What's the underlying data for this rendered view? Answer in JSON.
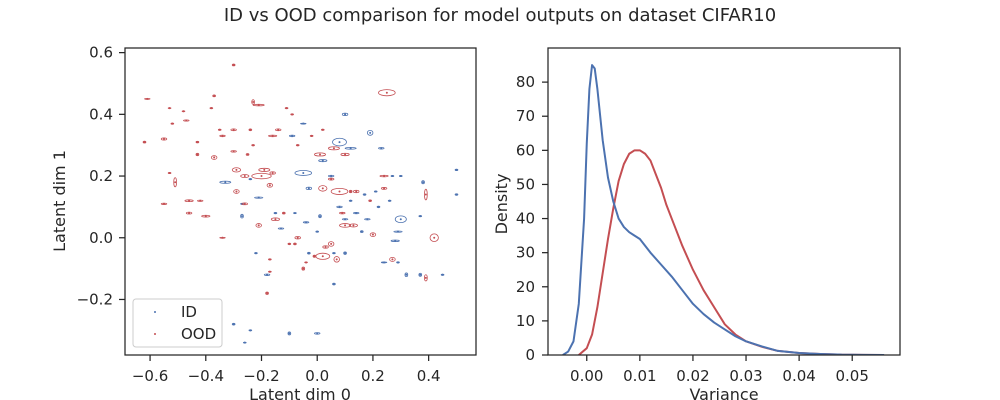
{
  "figure": {
    "title": "ID vs OOD comparison for model outputs on dataset CIFAR10"
  },
  "chart_data": [
    {
      "type": "scatter",
      "xlabel": "Latent dim 0",
      "ylabel": "Latent dim 1",
      "xlim": [
        -0.69,
        0.57
      ],
      "ylim": [
        -0.38,
        0.615
      ],
      "xticks": [
        -0.6,
        -0.4,
        -0.2,
        0.0,
        0.2,
        0.4
      ],
      "xtick_labels": [
        "−0.6",
        "−0.4",
        "−0.2",
        "0.0",
        "0.2",
        "0.4"
      ],
      "yticks": [
        -0.2,
        0.0,
        0.2,
        0.4,
        0.6
      ],
      "ytick_labels": [
        "−0.2",
        "0.0",
        "0.2",
        "0.4",
        "0.6"
      ],
      "legend": {
        "position": "lower-left",
        "entries": [
          "ID",
          "OOD"
        ]
      },
      "grid": false,
      "series": [
        {
          "name": "ID",
          "color": "#4c72b0",
          "points": [
            [
              0.1,
              0.4,
              0.02,
              0.008
            ],
            [
              0.08,
              0.31,
              0.05,
              0.025
            ],
            [
              0.19,
              0.34,
              0.02,
              0.016
            ],
            [
              0.23,
              0.29,
              0.02,
              0.005
            ],
            [
              0.12,
              0.29,
              0.04,
              0.006
            ],
            [
              0.02,
              0.25,
              0.03,
              0.007
            ],
            [
              -0.05,
              0.37,
              0.02,
              0.003
            ],
            [
              -0.09,
              0.33,
              0.02,
              0.005
            ],
            [
              -0.05,
              0.21,
              0.06,
              0.016
            ],
            [
              -0.03,
              0.16,
              0.02,
              0.008
            ],
            [
              -0.24,
              0.19,
              0.01,
              0.004
            ],
            [
              -0.33,
              0.18,
              0.04,
              0.007
            ],
            [
              -0.27,
              0.07,
              0.01,
              0.012
            ],
            [
              -0.21,
              0.13,
              0.03,
              0.004
            ],
            [
              -0.15,
              0.08,
              0.01,
              0.004
            ],
            [
              -0.13,
              0.03,
              0.02,
              0.004
            ],
            [
              -0.04,
              0.05,
              0.02,
              0.004
            ],
            [
              0.01,
              0.07,
              0.01,
              0.01
            ],
            [
              0.08,
              0.1,
              0.02,
              0.005
            ],
            [
              0.1,
              0.06,
              0.02,
              0.004
            ],
            [
              0.14,
              0.08,
              0.02,
              0.004
            ],
            [
              0.17,
              0.14,
              0.01,
              0.005
            ],
            [
              0.21,
              0.15,
              0.01,
              0.004
            ],
            [
              0.27,
              0.2,
              0.01,
              0.004
            ],
            [
              0.3,
              0.2,
              0.01,
              0.004
            ],
            [
              0.3,
              0.06,
              0.04,
              0.022
            ],
            [
              0.29,
              0.02,
              0.03,
              0.004
            ],
            [
              0.37,
              0.07,
              0.01,
              0.004
            ],
            [
              0.28,
              -0.01,
              0.03,
              0.005
            ],
            [
              0.24,
              -0.08,
              0.02,
              0.003
            ],
            [
              0.29,
              -0.08,
              0.01,
              0.004
            ],
            [
              0.32,
              -0.12,
              0.01,
              0.012
            ],
            [
              0.37,
              -0.12,
              0.01,
              0.01
            ],
            [
              0.45,
              -0.12,
              0.01,
              0.004
            ],
            [
              0.5,
              0.14,
              0.01,
              0.005
            ],
            [
              0.5,
              0.22,
              0.01,
              0.005
            ],
            [
              0.38,
              0.18,
              0.01,
              0.01
            ],
            [
              0.1,
              -0.05,
              0.01,
              0.008
            ],
            [
              0.06,
              -0.15,
              0.01,
              0.006
            ],
            [
              0.06,
              -0.05,
              0.01,
              0.004
            ],
            [
              -0.03,
              -0.05,
              0.01,
              0.006
            ],
            [
              -0.18,
              -0.12,
              0.02,
              0.005
            ],
            [
              -0.3,
              -0.28,
              0.01,
              0.006
            ],
            [
              -0.26,
              -0.34,
              0.01,
              0.003
            ],
            [
              -0.1,
              -0.31,
              0.01,
              0.01
            ],
            [
              0.0,
              -0.31,
              0.02,
              0.005
            ],
            [
              0.16,
              0.02,
              0.01,
              0.006
            ],
            [
              -0.22,
              -0.05,
              0.01,
              0.004
            ],
            [
              -0.27,
              0.11,
              0.01,
              0.003
            ],
            [
              0.22,
              0.1,
              0.01,
              0.005
            ],
            [
              0.05,
              0.2,
              0.02,
              0.005
            ],
            [
              -0.08,
              0.08,
              0.01,
              0.003
            ],
            [
              0.0,
              0.02,
              0.01,
              0.004
            ],
            [
              0.12,
              0.12,
              0.01,
              0.004
            ],
            [
              0.18,
              0.06,
              0.02,
              0.004
            ],
            [
              0.26,
              0.12,
              0.01,
              0.004
            ],
            [
              -0.24,
              -0.3,
              0.01,
              0.003
            ]
          ]
        },
        {
          "name": "OOD",
          "color": "#c44e52",
          "points": [
            [
              0.25,
              0.47,
              0.06,
              0.02
            ],
            [
              -0.21,
              0.43,
              0.04,
              0.005
            ],
            [
              -0.23,
              0.44,
              0.01,
              0.015
            ],
            [
              -0.3,
              0.56,
              0.01,
              0.006
            ],
            [
              -0.61,
              0.45,
              0.02,
              0.003
            ],
            [
              -0.37,
              0.46,
              0.01,
              0.006
            ],
            [
              -0.53,
              0.42,
              0.01,
              0.003
            ],
            [
              -0.48,
              0.41,
              0.01,
              0.003
            ],
            [
              -0.47,
              0.38,
              0.02,
              0.004
            ],
            [
              -0.52,
              0.37,
              0.01,
              0.004
            ],
            [
              -0.3,
              0.35,
              0.02,
              0.006
            ],
            [
              -0.24,
              0.35,
              0.01,
              0.006
            ],
            [
              -0.16,
              0.33,
              0.03,
              0.005
            ],
            [
              -0.14,
              0.35,
              0.02,
              0.006
            ],
            [
              -0.09,
              0.4,
              0.01,
              0.004
            ],
            [
              -0.02,
              0.33,
              0.01,
              0.004
            ],
            [
              0.02,
              0.35,
              0.01,
              0.004
            ],
            [
              -0.35,
              0.35,
              0.01,
              0.004
            ],
            [
              -0.62,
              0.31,
              0.01,
              0.006
            ],
            [
              -0.55,
              0.32,
              0.02,
              0.007
            ],
            [
              -0.43,
              0.31,
              0.01,
              0.005
            ],
            [
              -0.37,
              0.26,
              0.02,
              0.012
            ],
            [
              -0.43,
              0.27,
              0.01,
              0.008
            ],
            [
              -0.3,
              0.28,
              0.02,
              0.005
            ],
            [
              -0.25,
              0.27,
              0.01,
              0.006
            ],
            [
              -0.23,
              0.3,
              0.01,
              0.004
            ],
            [
              0.01,
              0.27,
              0.04,
              0.01
            ],
            [
              0.1,
              0.27,
              0.03,
              0.008
            ],
            [
              0.06,
              0.29,
              0.04,
              0.01
            ],
            [
              -0.07,
              0.3,
              0.01,
              0.004
            ],
            [
              -0.29,
              0.22,
              0.03,
              0.014
            ],
            [
              -0.26,
              0.2,
              0.03,
              0.01
            ],
            [
              -0.2,
              0.2,
              0.07,
              0.018
            ],
            [
              -0.19,
              0.22,
              0.04,
              0.01
            ],
            [
              -0.16,
              0.21,
              0.02,
              0.008
            ],
            [
              -0.17,
              0.17,
              0.02,
              0.012
            ],
            [
              -0.29,
              0.15,
              0.02,
              0.012
            ],
            [
              -0.51,
              0.18,
              0.01,
              0.03
            ],
            [
              -0.55,
              0.11,
              0.02,
              0.004
            ],
            [
              -0.46,
              0.12,
              0.03,
              0.006
            ],
            [
              -0.46,
              0.08,
              0.02,
              0.006
            ],
            [
              -0.53,
              0.21,
              0.01,
              0.004
            ],
            [
              0.05,
              0.19,
              0.02,
              0.006
            ],
            [
              0.02,
              0.16,
              0.03,
              0.018
            ],
            [
              0.08,
              0.15,
              0.06,
              0.02
            ],
            [
              0.12,
              0.15,
              0.01,
              0.008
            ],
            [
              0.14,
              0.15,
              0.02,
              0.008
            ],
            [
              0.19,
              0.12,
              0.01,
              0.005
            ],
            [
              0.24,
              0.2,
              0.03,
              0.005
            ],
            [
              0.24,
              0.16,
              0.02,
              0.006
            ],
            [
              0.39,
              0.14,
              0.01,
              0.035
            ],
            [
              0.42,
              0.0,
              0.03,
              0.025
            ],
            [
              0.39,
              -0.13,
              0.01,
              0.02
            ],
            [
              0.27,
              -0.07,
              0.02,
              0.013
            ],
            [
              0.1,
              0.04,
              0.04,
              0.012
            ],
            [
              0.05,
              -0.02,
              0.02,
              0.015
            ],
            [
              0.07,
              -0.07,
              0.02,
              0.018
            ],
            [
              0.03,
              -0.03,
              0.02,
              0.008
            ],
            [
              0.02,
              -0.06,
              0.05,
              0.02
            ],
            [
              -0.01,
              -0.06,
              0.01,
              0.007
            ],
            [
              -0.07,
              0.0,
              0.02,
              0.008
            ],
            [
              -0.1,
              -0.02,
              0.01,
              0.005
            ],
            [
              -0.12,
              0.08,
              0.01,
              0.006
            ],
            [
              -0.15,
              0.06,
              0.03,
              0.009
            ],
            [
              -0.21,
              0.04,
              0.02,
              0.012
            ],
            [
              -0.26,
              0.11,
              0.02,
              0.006
            ],
            [
              -0.4,
              0.07,
              0.03,
              0.006
            ],
            [
              -0.42,
              0.12,
              0.02,
              0.004
            ],
            [
              -0.34,
              0.0,
              0.02,
              0.003
            ],
            [
              -0.17,
              -0.07,
              0.01,
              0.004
            ],
            [
              -0.17,
              -0.11,
              0.01,
              0.003
            ],
            [
              -0.18,
              -0.18,
              0.01,
              0.008
            ],
            [
              -0.05,
              -0.1,
              0.01,
              0.01
            ],
            [
              -0.04,
              -0.08,
              0.01,
              0.003
            ],
            [
              -0.08,
              -0.02,
              0.01,
              0.006
            ],
            [
              0.09,
              0.08,
              0.02,
              0.005
            ],
            [
              0.13,
              0.04,
              0.03,
              0.01
            ],
            [
              0.2,
              0.01,
              0.02,
              0.012
            ],
            [
              -0.34,
              0.33,
              0.02,
              0.005
            ],
            [
              -0.38,
              0.42,
              0.01,
              0.004
            ],
            [
              -0.11,
              0.42,
              0.01,
              0.004
            ]
          ]
        }
      ]
    },
    {
      "type": "line",
      "xlabel": "Variance",
      "ylabel": "Density",
      "xlim": [
        -0.0073,
        0.059
      ],
      "ylim": [
        0,
        90
      ],
      "xticks": [
        0.0,
        0.01,
        0.02,
        0.03,
        0.04,
        0.05
      ],
      "xtick_labels": [
        "0.00",
        "0.01",
        "0.02",
        "0.03",
        "0.04",
        "0.05"
      ],
      "yticks": [
        0,
        10,
        20,
        30,
        40,
        50,
        60,
        70,
        80
      ],
      "ytick_labels": [
        "0",
        "10",
        "20",
        "30",
        "40",
        "50",
        "60",
        "70",
        "80"
      ],
      "grid": false,
      "series": [
        {
          "name": "ID",
          "color": "#4c72b0",
          "x": [
            -0.0045,
            -0.0035,
            -0.0025,
            -0.0015,
            -0.0005,
            0.0,
            0.0005,
            0.001,
            0.0015,
            0.002,
            0.003,
            0.004,
            0.005,
            0.006,
            0.007,
            0.008,
            0.009,
            0.01,
            0.012,
            0.014,
            0.016,
            0.018,
            0.02,
            0.022,
            0.024,
            0.026,
            0.028,
            0.03,
            0.033,
            0.036,
            0.04,
            0.044,
            0.048,
            0.052,
            0.056
          ],
          "y": [
            0,
            1,
            4,
            15,
            40,
            62,
            78,
            85,
            84,
            78,
            63,
            52,
            45,
            40,
            37.5,
            36,
            35,
            34,
            30,
            26.5,
            23,
            19,
            15,
            12,
            9.5,
            7.5,
            5.5,
            4,
            2.5,
            1.2,
            0.6,
            0.3,
            0.1,
            0.05,
            0
          ]
        },
        {
          "name": "OOD",
          "color": "#c44e52",
          "x": [
            -0.0015,
            0.0,
            0.001,
            0.002,
            0.003,
            0.004,
            0.005,
            0.006,
            0.007,
            0.008,
            0.009,
            0.01,
            0.011,
            0.012,
            0.013,
            0.014,
            0.015,
            0.016,
            0.018,
            0.02,
            0.022,
            0.024,
            0.026,
            0.028,
            0.03,
            0.033,
            0.036,
            0.04,
            0.044,
            0.048,
            0.052,
            0.056
          ],
          "y": [
            0,
            2,
            6,
            14,
            24,
            34,
            43,
            51,
            56,
            59,
            60,
            60,
            59,
            57,
            53,
            49,
            44,
            40,
            32,
            25,
            19,
            14,
            9,
            6,
            4,
            2.4,
            1.2,
            0.6,
            0.3,
            0.1,
            0.05,
            0
          ]
        }
      ]
    }
  ]
}
